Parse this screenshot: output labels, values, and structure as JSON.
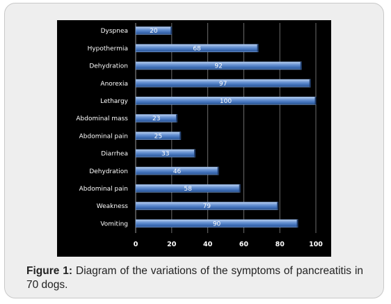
{
  "chart_data": {
    "type": "bar",
    "orientation": "horizontal",
    "categories": [
      "Dyspnea",
      "Hypothermia",
      "Dehydration",
      "Anorexia",
      "Lethargy",
      "Abdominal mass",
      "Abdominal pain",
      "Diarrhea",
      "Dehydration",
      "Abdominal pain",
      "Weakness",
      "Vomiting"
    ],
    "values": [
      20,
      68,
      92,
      97,
      100,
      23,
      25,
      33,
      46,
      58,
      79,
      90
    ],
    "xlim": [
      0,
      100
    ],
    "xticks": [
      0,
      20,
      40,
      60,
      80,
      100
    ],
    "grid": true,
    "data_labels": true,
    "bar_color": "#4f81bd",
    "background": "#000000"
  },
  "caption": {
    "label": "Figure 1:",
    "text": " Diagram of the variations of the symptoms of pancreatitis in 70 dogs."
  }
}
